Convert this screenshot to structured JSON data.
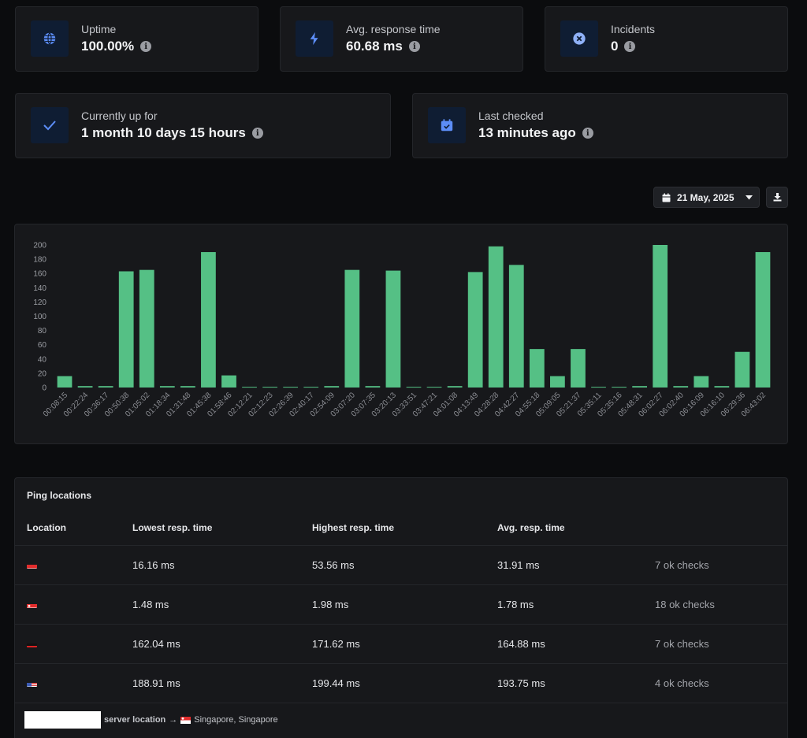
{
  "stats": {
    "uptime": {
      "label": "Uptime",
      "value": "100.00%"
    },
    "avg_response": {
      "label": "Avg. response time",
      "value": "60.68 ms"
    },
    "incidents": {
      "label": "Incidents",
      "value": "0"
    },
    "currently_up": {
      "label": "Currently up for",
      "value": "1 month 10 days 15 hours"
    },
    "last_checked": {
      "label": "Last checked",
      "value": "13 minutes ago"
    }
  },
  "date_picker": {
    "value": "21 May, 2025"
  },
  "colors": {
    "accent": "#5c8df6",
    "bar": "#55c085",
    "card": "#17181b"
  },
  "chart_data": {
    "type": "bar",
    "title": "",
    "xlabel": "",
    "ylabel": "",
    "ylim": [
      0,
      200
    ],
    "y_ticks": [
      0,
      20,
      40,
      60,
      80,
      100,
      120,
      140,
      160,
      180,
      200
    ],
    "categories": [
      "00:08:15",
      "00:22:24",
      "00:36:17",
      "00:50:38",
      "01:05:02",
      "01:18:34",
      "01:31:48",
      "01:45:38",
      "01:58:46",
      "02:12:21",
      "02:12:23",
      "02:26:39",
      "02:40:17",
      "02:54:09",
      "03:07:20",
      "03:07:35",
      "03:20:13",
      "03:33:51",
      "03:47:21",
      "04:01:08",
      "04:13:49",
      "04:28:28",
      "04:42:27",
      "04:55:18",
      "05:09:05",
      "05:21:37",
      "05:35:11",
      "05:35:16",
      "05:48:31",
      "06:02:27",
      "06:02:40",
      "06:16:09",
      "06:16:10",
      "06:29:36",
      "06:43:02"
    ],
    "values": [
      16,
      2,
      2,
      163,
      165,
      2,
      2,
      190,
      17,
      1,
      1,
      1,
      1,
      2,
      165,
      2,
      164,
      1,
      1,
      2,
      162,
      198,
      172,
      54,
      16,
      54,
      1,
      1,
      2,
      200,
      2,
      16,
      2,
      50,
      190
    ]
  },
  "ping_table": {
    "title": "Ping locations",
    "headers": {
      "location": "Location",
      "lowest": "Lowest resp. time",
      "highest": "Highest resp. time",
      "avg": "Avg. resp. time"
    },
    "rows": [
      {
        "flag": "indonesia-flag",
        "lowest": "16.16 ms",
        "highest": "53.56 ms",
        "avg": "31.91 ms",
        "checks": "7 ok checks"
      },
      {
        "flag": "singapore-flag",
        "lowest": "1.48 ms",
        "highest": "1.98 ms",
        "avg": "1.78 ms",
        "checks": "18 ok checks"
      },
      {
        "flag": "germany-flag",
        "lowest": "162.04 ms",
        "highest": "171.62 ms",
        "avg": "164.88 ms",
        "checks": "7 ok checks"
      },
      {
        "flag": "usa-flag",
        "lowest": "188.91 ms",
        "highest": "199.44 ms",
        "avg": "193.75 ms",
        "checks": "4 ok checks"
      }
    ],
    "footer": {
      "label": "server location",
      "arrow": "→",
      "location": "Singapore, Singapore"
    }
  }
}
